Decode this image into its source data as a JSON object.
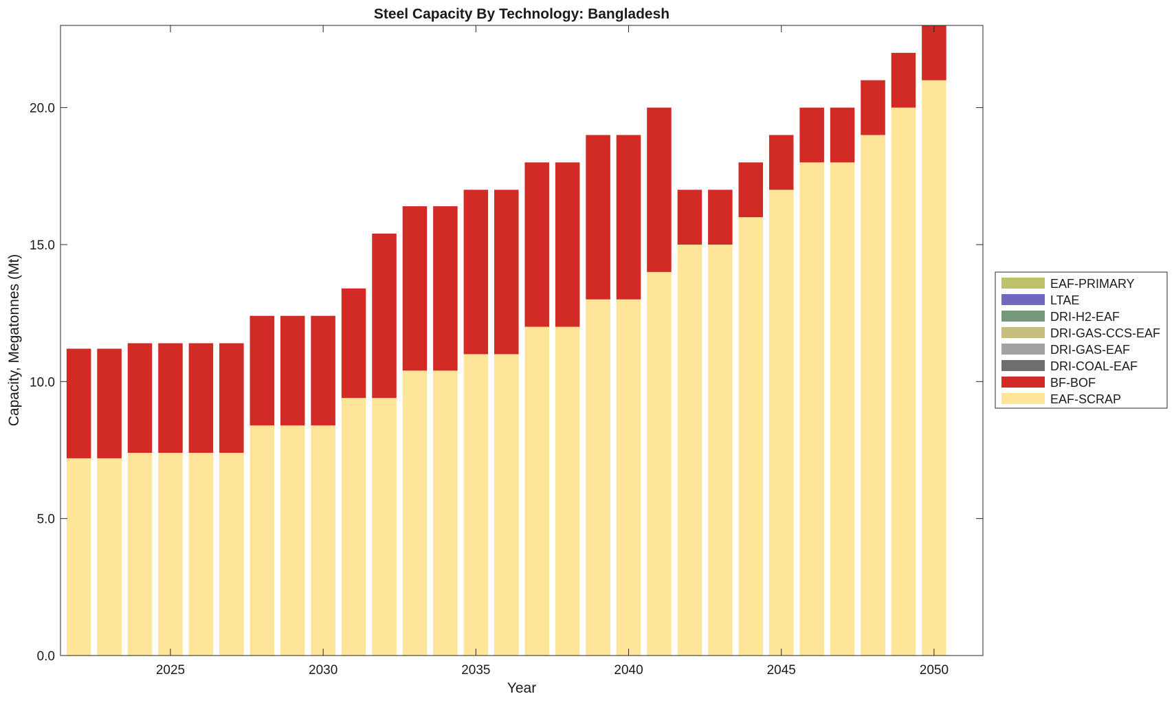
{
  "chart_data": {
    "type": "bar",
    "stacked": true,
    "title": "Steel Capacity By Technology: Bangladesh",
    "xlabel": "Year",
    "ylabel": "Capacity, Megatonnes (Mt)",
    "ylim": [
      0,
      23
    ],
    "xlim": [
      2021.4,
      2051.6
    ],
    "yticks": [
      0,
      5,
      10,
      15,
      20
    ],
    "ytick_labels": [
      "0.0",
      "5.0",
      "10.0",
      "15.0",
      "20.0"
    ],
    "xticks": [
      2025,
      2030,
      2035,
      2040,
      2045,
      2050
    ],
    "xtick_labels": [
      "2025",
      "2030",
      "2035",
      "2040",
      "2045",
      "2050"
    ],
    "grid": false,
    "legend_position": "outside-right",
    "categories": [
      2022,
      2023,
      2024,
      2025,
      2026,
      2027,
      2028,
      2029,
      2030,
      2031,
      2032,
      2033,
      2034,
      2035,
      2036,
      2037,
      2038,
      2039,
      2040,
      2041,
      2042,
      2043,
      2044,
      2045,
      2046,
      2047,
      2048,
      2049,
      2050
    ],
    "series": [
      {
        "name": "EAF-SCRAP",
        "color": "#FFE599",
        "values": [
          7.2,
          7.2,
          7.4,
          7.4,
          7.4,
          7.4,
          8.4,
          8.4,
          8.4,
          9.4,
          9.4,
          10.4,
          10.4,
          11,
          11,
          12,
          12,
          13,
          13,
          14,
          15,
          15,
          16,
          17,
          18,
          18,
          19,
          20,
          21
        ]
      },
      {
        "name": "BF-BOF",
        "color": "#D22B26",
        "values": [
          4,
          4,
          4,
          4,
          4,
          4,
          4,
          4,
          4,
          4,
          6,
          6,
          6,
          6,
          6,
          6,
          6,
          6,
          6,
          6,
          2,
          2,
          2,
          2,
          2,
          2,
          2,
          2,
          2
        ]
      },
      {
        "name": "DRI-COAL-EAF",
        "color": "#6E6E6E",
        "values": [
          0,
          0,
          0,
          0,
          0,
          0,
          0,
          0,
          0,
          0,
          0,
          0,
          0,
          0,
          0,
          0,
          0,
          0,
          0,
          0,
          0,
          0,
          0,
          0,
          0,
          0,
          0,
          0,
          0
        ]
      },
      {
        "name": "DRI-GAS-EAF",
        "color": "#A2A2A2",
        "values": [
          0,
          0,
          0,
          0,
          0,
          0,
          0,
          0,
          0,
          0,
          0,
          0,
          0,
          0,
          0,
          0,
          0,
          0,
          0,
          0,
          0,
          0,
          0,
          0,
          0,
          0,
          0,
          0,
          0
        ]
      },
      {
        "name": "DRI-GAS-CCS-EAF",
        "color": "#C7BD7F",
        "values": [
          0,
          0,
          0,
          0,
          0,
          0,
          0,
          0,
          0,
          0,
          0,
          0,
          0,
          0,
          0,
          0,
          0,
          0,
          0,
          0,
          0,
          0,
          0,
          0,
          0,
          0,
          0,
          0,
          0
        ]
      },
      {
        "name": "DRI-H2-EAF",
        "color": "#75977A",
        "values": [
          0,
          0,
          0,
          0,
          0,
          0,
          0,
          0,
          0,
          0,
          0,
          0,
          0,
          0,
          0,
          0,
          0,
          0,
          0,
          0,
          0,
          0,
          0,
          0,
          0,
          0,
          0,
          0,
          0
        ]
      },
      {
        "name": "LTAE",
        "color": "#7267BF",
        "values": [
          0,
          0,
          0,
          0,
          0,
          0,
          0,
          0,
          0,
          0,
          0,
          0,
          0,
          0,
          0,
          0,
          0,
          0,
          0,
          0,
          0,
          0,
          0,
          0,
          0,
          0,
          0,
          0,
          0
        ]
      },
      {
        "name": "EAF-PRIMARY",
        "color": "#BDC36A",
        "values": [
          0,
          0,
          0,
          0,
          0,
          0,
          0,
          0,
          0,
          0,
          0,
          0,
          0,
          0,
          0,
          0,
          0,
          0,
          0,
          0,
          0,
          0,
          0,
          0,
          0,
          0,
          0,
          0,
          0
        ]
      }
    ],
    "legend_order": [
      "EAF-PRIMARY",
      "LTAE",
      "DRI-H2-EAF",
      "DRI-GAS-CCS-EAF",
      "DRI-GAS-EAF",
      "DRI-COAL-EAF",
      "BF-BOF",
      "EAF-SCRAP"
    ]
  }
}
